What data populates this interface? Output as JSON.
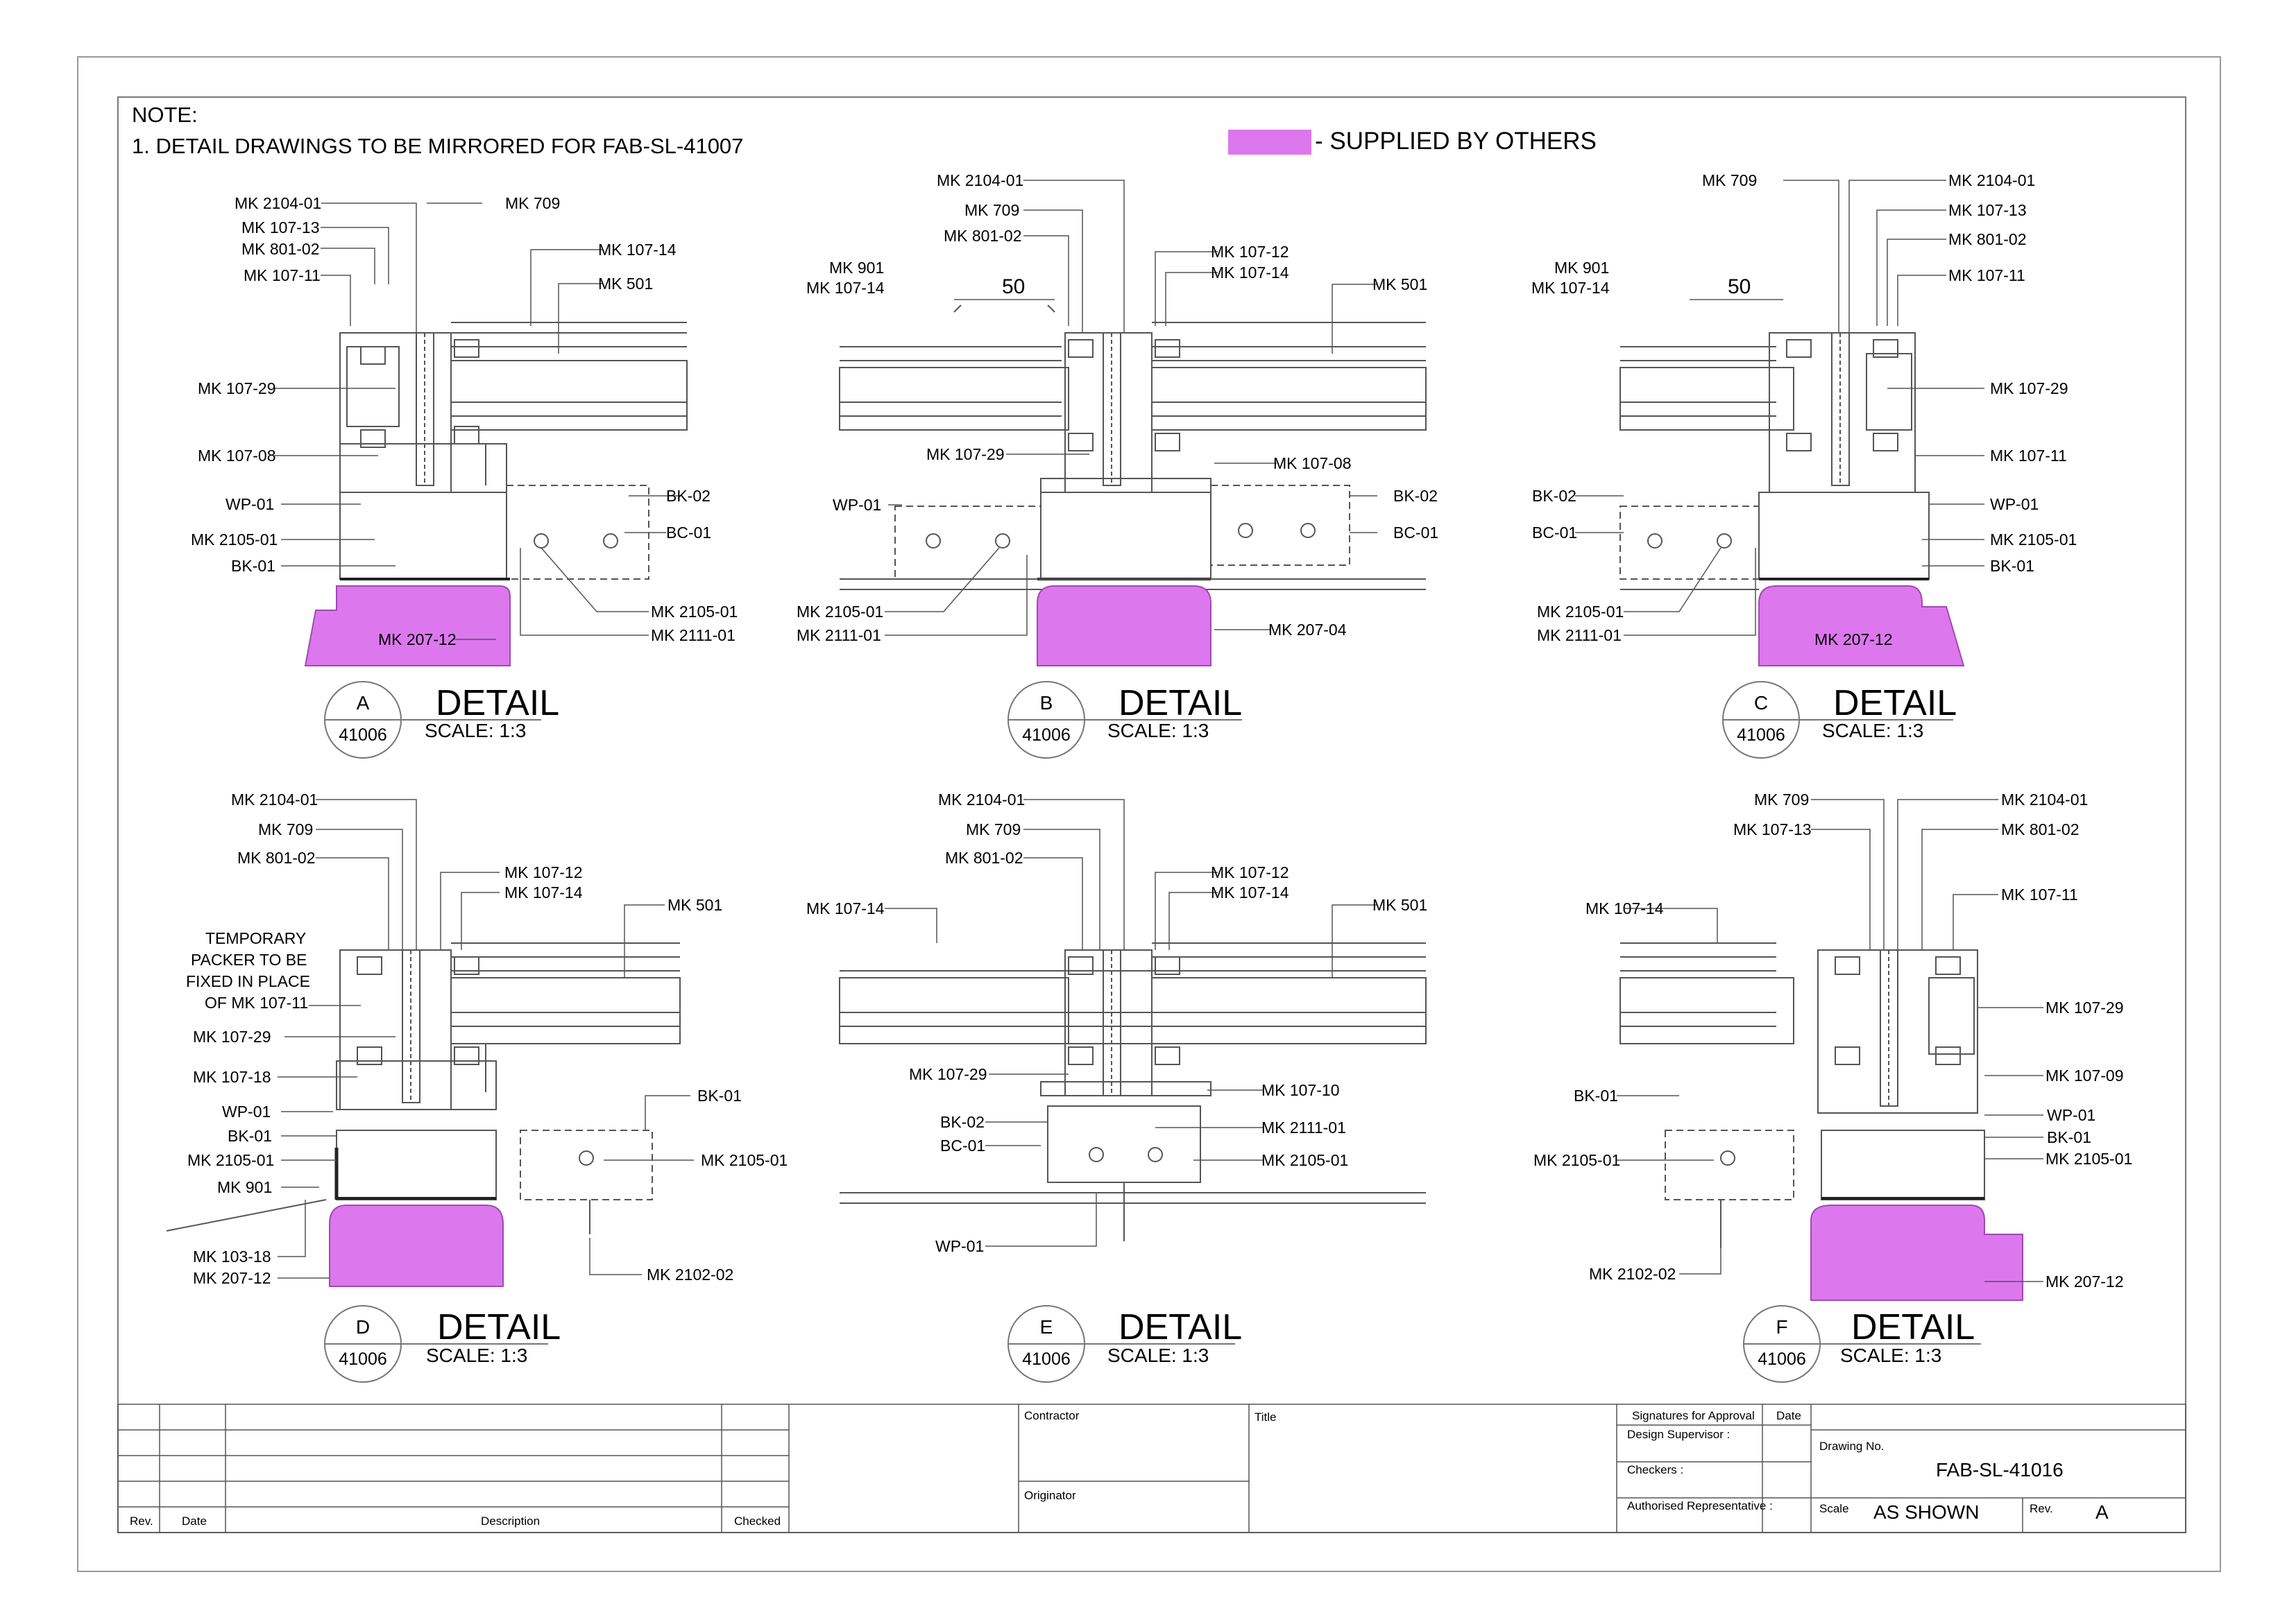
{
  "notes": {
    "heading": "NOTE:",
    "item1": "1.   DETAIL DRAWINGS TO BE MIRRORED FOR FAB-SL-41007"
  },
  "legend": {
    "color": "#dd77ee",
    "text": "- SUPPLIED BY OTHERS"
  },
  "details": [
    {
      "letter": "A",
      "ref": "41006",
      "title": "DETAIL",
      "scale": "SCALE:  1:3",
      "labels": [
        "MK 2104-01",
        "MK 709",
        "MK 107-13",
        "MK 801-02",
        "MK 107-11",
        "MK 107-14",
        "MK 501",
        "MK 107-29",
        "MK 107-08",
        "WP-01",
        "BK-02",
        "MK 2105-01",
        "BC-01",
        "BK-01",
        "MK 2105-01",
        "MK 2111-01",
        "MK 207-12"
      ]
    },
    {
      "letter": "B",
      "ref": "41006",
      "title": "DETAIL",
      "scale": "SCALE:  1:3",
      "dim": "50",
      "labels": [
        "MK 2104-01",
        "MK 709",
        "MK 801-02",
        "MK 901",
        "MK 107-14",
        "MK 107-12",
        "MK 107-14",
        "MK 501",
        "MK 107-29",
        "MK 107-08",
        "WP-01",
        "BK-02",
        "BC-01",
        "MK 2105-01",
        "MK 2111-01",
        "MK 207-04"
      ]
    },
    {
      "letter": "C",
      "ref": "41006",
      "title": "DETAIL",
      "scale": "SCALE:  1:3",
      "dim": "50",
      "labels": [
        "MK 709",
        "MK 2104-01",
        "MK 107-13",
        "MK 801-02",
        "MK 901",
        "MK 107-14",
        "MK 107-11",
        "MK 107-29",
        "MK 107-11",
        "BK-02",
        "WP-01",
        "BC-01",
        "MK 2105-01",
        "BK-01",
        "MK 2105-01",
        "MK 2111-01",
        "MK 207-12"
      ]
    },
    {
      "letter": "D",
      "ref": "41006",
      "title": "DETAIL",
      "scale": "SCALE:  1:3",
      "labels": [
        "MK 2104-01",
        "MK 709",
        "MK 801-02",
        "MK 107-12",
        "MK 107-14",
        "MK 501",
        "TEMPORARY",
        "PACKER TO BE",
        "FIXED IN PLACE",
        "OF MK 107-11",
        "MK 107-29",
        "MK 107-18",
        "WP-01",
        "BK-01",
        "BK-01",
        "MK 2105-01",
        "MK 2105-01",
        "MK 901",
        "MK 103-18",
        "MK 207-12",
        "MK 2102-02"
      ]
    },
    {
      "letter": "E",
      "ref": "41006",
      "title": "DETAIL",
      "scale": "SCALE:  1:3",
      "labels": [
        "MK 2104-01",
        "MK 709",
        "MK 801-02",
        "MK 107-12",
        "MK 107-14",
        "MK 107-14",
        "MK 501",
        "MK 107-29",
        "MK 107-10",
        "BK-02",
        "MK 2111-01",
        "BC-01",
        "MK 2105-01",
        "WP-01"
      ]
    },
    {
      "letter": "F",
      "ref": "41006",
      "title": "DETAIL",
      "scale": "SCALE:  1:3",
      "labels": [
        "MK 709",
        "MK 2104-01",
        "MK 107-13",
        "MK 801-02",
        "MK 107-14",
        "MK 107-11",
        "MK 107-29",
        "MK 107-09",
        "BK-01",
        "WP-01",
        "BK-01",
        "MK 2105-01",
        "MK 2105-01",
        "MK 2102-02",
        "MK 207-12"
      ]
    }
  ],
  "title_block": {
    "rev_header": "Rev.",
    "date_header": "Date",
    "description_header": "Description",
    "checked_header": "Checked",
    "contractor": "Contractor",
    "originator": "Originator",
    "title": "Title",
    "signatures": "Signatures for Approval",
    "sig_date": "Date",
    "design_supervisor": "Design Supervisor :",
    "checkers": "Checkers :",
    "authorised": "Authorised Representative :",
    "drawing_no_label": "Drawing No.",
    "drawing_no": "FAB-SL-41016",
    "scale_label": "Scale",
    "scale_value": "AS SHOWN",
    "rev_label": "Rev.",
    "rev_value": "A"
  }
}
